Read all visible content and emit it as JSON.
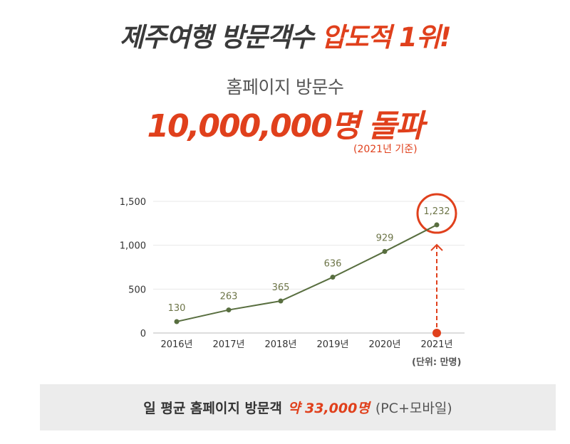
{
  "header": {
    "title_part1": "제주여행 방문객수",
    "title_part2": "압도적 1위!",
    "subtitle": "홈페이지 방문수",
    "headline_number": "10,000,000명 돌파",
    "basis_note": "(2021년 기준)"
  },
  "chart_data": {
    "type": "line",
    "categories": [
      "2016년",
      "2017년",
      "2018년",
      "2019년",
      "2020년",
      "2021년"
    ],
    "values": [
      130,
      263,
      365,
      636,
      929,
      1232
    ],
    "data_labels": [
      "130",
      "263",
      "365",
      "636",
      "929",
      "1,232"
    ],
    "ylim": [
      0,
      1500
    ],
    "yticks": [
      0,
      500,
      1000,
      1500
    ],
    "ytick_labels": [
      "0",
      "500",
      "1,000",
      "1,500"
    ],
    "unit_label": "(단위: 만명)",
    "grid": true,
    "line_color": "#586e3f",
    "highlight_color": "#e0401c",
    "highlight_index": 5
  },
  "footer": {
    "text_bold": "일 평균 홈페이지 방문객",
    "text_highlight": "약 33,000명",
    "text_note": "(PC+모바일)"
  }
}
